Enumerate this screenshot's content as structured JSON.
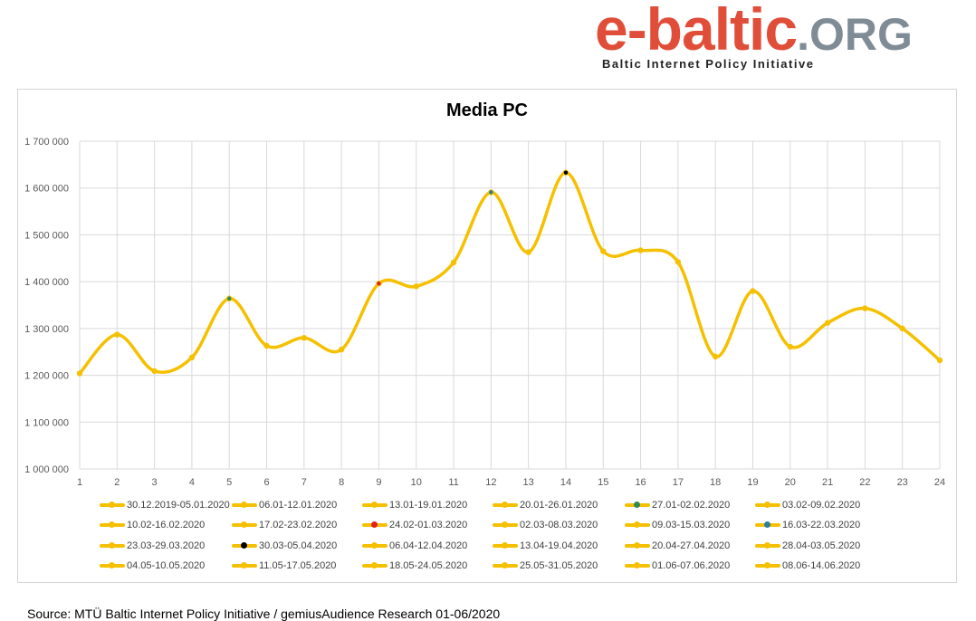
{
  "logo": {
    "main": "e-baltic",
    "org": ".ORG",
    "tagline": "Baltic Internet Policy Initiative"
  },
  "chart_data": {
    "type": "line",
    "title": "Media PC",
    "xlabel": "",
    "ylabel": "",
    "x": [
      1,
      2,
      3,
      4,
      5,
      6,
      7,
      8,
      9,
      10,
      11,
      12,
      13,
      14,
      15,
      16,
      17,
      18,
      19,
      20,
      21,
      22,
      23,
      24
    ],
    "values": [
      1204000,
      1287000,
      1209000,
      1238000,
      1364000,
      1263000,
      1280000,
      1255000,
      1396000,
      1390000,
      1441000,
      1591000,
      1463000,
      1633000,
      1465000,
      1467000,
      1442000,
      1240000,
      1380000,
      1261000,
      1312000,
      1343000,
      1300000,
      1232000
    ],
    "ylim": [
      1000000,
      1700000
    ],
    "yticks": [
      1000000,
      1100000,
      1200000,
      1300000,
      1400000,
      1500000,
      1600000,
      1700000
    ],
    "ytick_labels": [
      "1 000 000",
      "1 100 000",
      "1 200 000",
      "1 300 000",
      "1 400 000",
      "1 500 000",
      "1 600 000",
      "1 700 000"
    ],
    "grid": true,
    "line_color": "#f5c000",
    "smooth": true,
    "special_markers": [
      {
        "index": 4,
        "color": "#2e8b57"
      },
      {
        "index": 8,
        "color": "#e02020"
      },
      {
        "index": 11,
        "color": "#2a7f9a"
      },
      {
        "index": 13,
        "color": "#000000"
      }
    ],
    "legend_position": "bottom",
    "legend": [
      {
        "label": "30.12.2019-05.01.2020",
        "dot": "#f5c000"
      },
      {
        "label": "06.01-12.01.2020",
        "dot": "#f5c000"
      },
      {
        "label": "13.01-19.01.2020",
        "dot": "#f5c000"
      },
      {
        "label": "20.01-26.01.2020",
        "dot": "#f5c000"
      },
      {
        "label": "27.01-02.02.2020",
        "dot": "#2e8b57"
      },
      {
        "label": "03.02-09.02.2020",
        "dot": "#f5c000"
      },
      {
        "label": "10.02-16.02.2020",
        "dot": "#f5c000"
      },
      {
        "label": "17.02-23.02.2020",
        "dot": "#f5c000"
      },
      {
        "label": "24.02-01.03.2020",
        "dot": "#e02020"
      },
      {
        "label": "02.03-08.03.2020",
        "dot": "#f5c000"
      },
      {
        "label": "09.03-15.03.2020",
        "dot": "#f5c000"
      },
      {
        "label": "16.03-22.03.2020",
        "dot": "#2a7f9a"
      },
      {
        "label": "23.03-29.03.2020",
        "dot": "#f5c000"
      },
      {
        "label": "30.03-05.04.2020",
        "dot": "#000000"
      },
      {
        "label": "06.04-12.04.2020",
        "dot": "#f5c000"
      },
      {
        "label": "13.04-19.04.2020",
        "dot": "#f5c000"
      },
      {
        "label": "20.04-27.04.2020",
        "dot": "#f5c000"
      },
      {
        "label": "28.04-03.05.2020",
        "dot": "#f5c000"
      },
      {
        "label": "04.05-10.05.2020",
        "dot": "#f5c000"
      },
      {
        "label": "11.05-17.05.2020",
        "dot": "#f5c000"
      },
      {
        "label": "18.05-24.05.2020",
        "dot": "#f5c000"
      },
      {
        "label": "25.05-31.05.2020",
        "dot": "#f5c000"
      },
      {
        "label": "01.06-07.06.2020",
        "dot": "#f5c000"
      },
      {
        "label": "08.06-14.06.2020",
        "dot": "#f5c000"
      }
    ]
  },
  "source": "Source: MTÜ Baltic Internet Policy Initiative / gemiusAudience Research 01-06/2020"
}
